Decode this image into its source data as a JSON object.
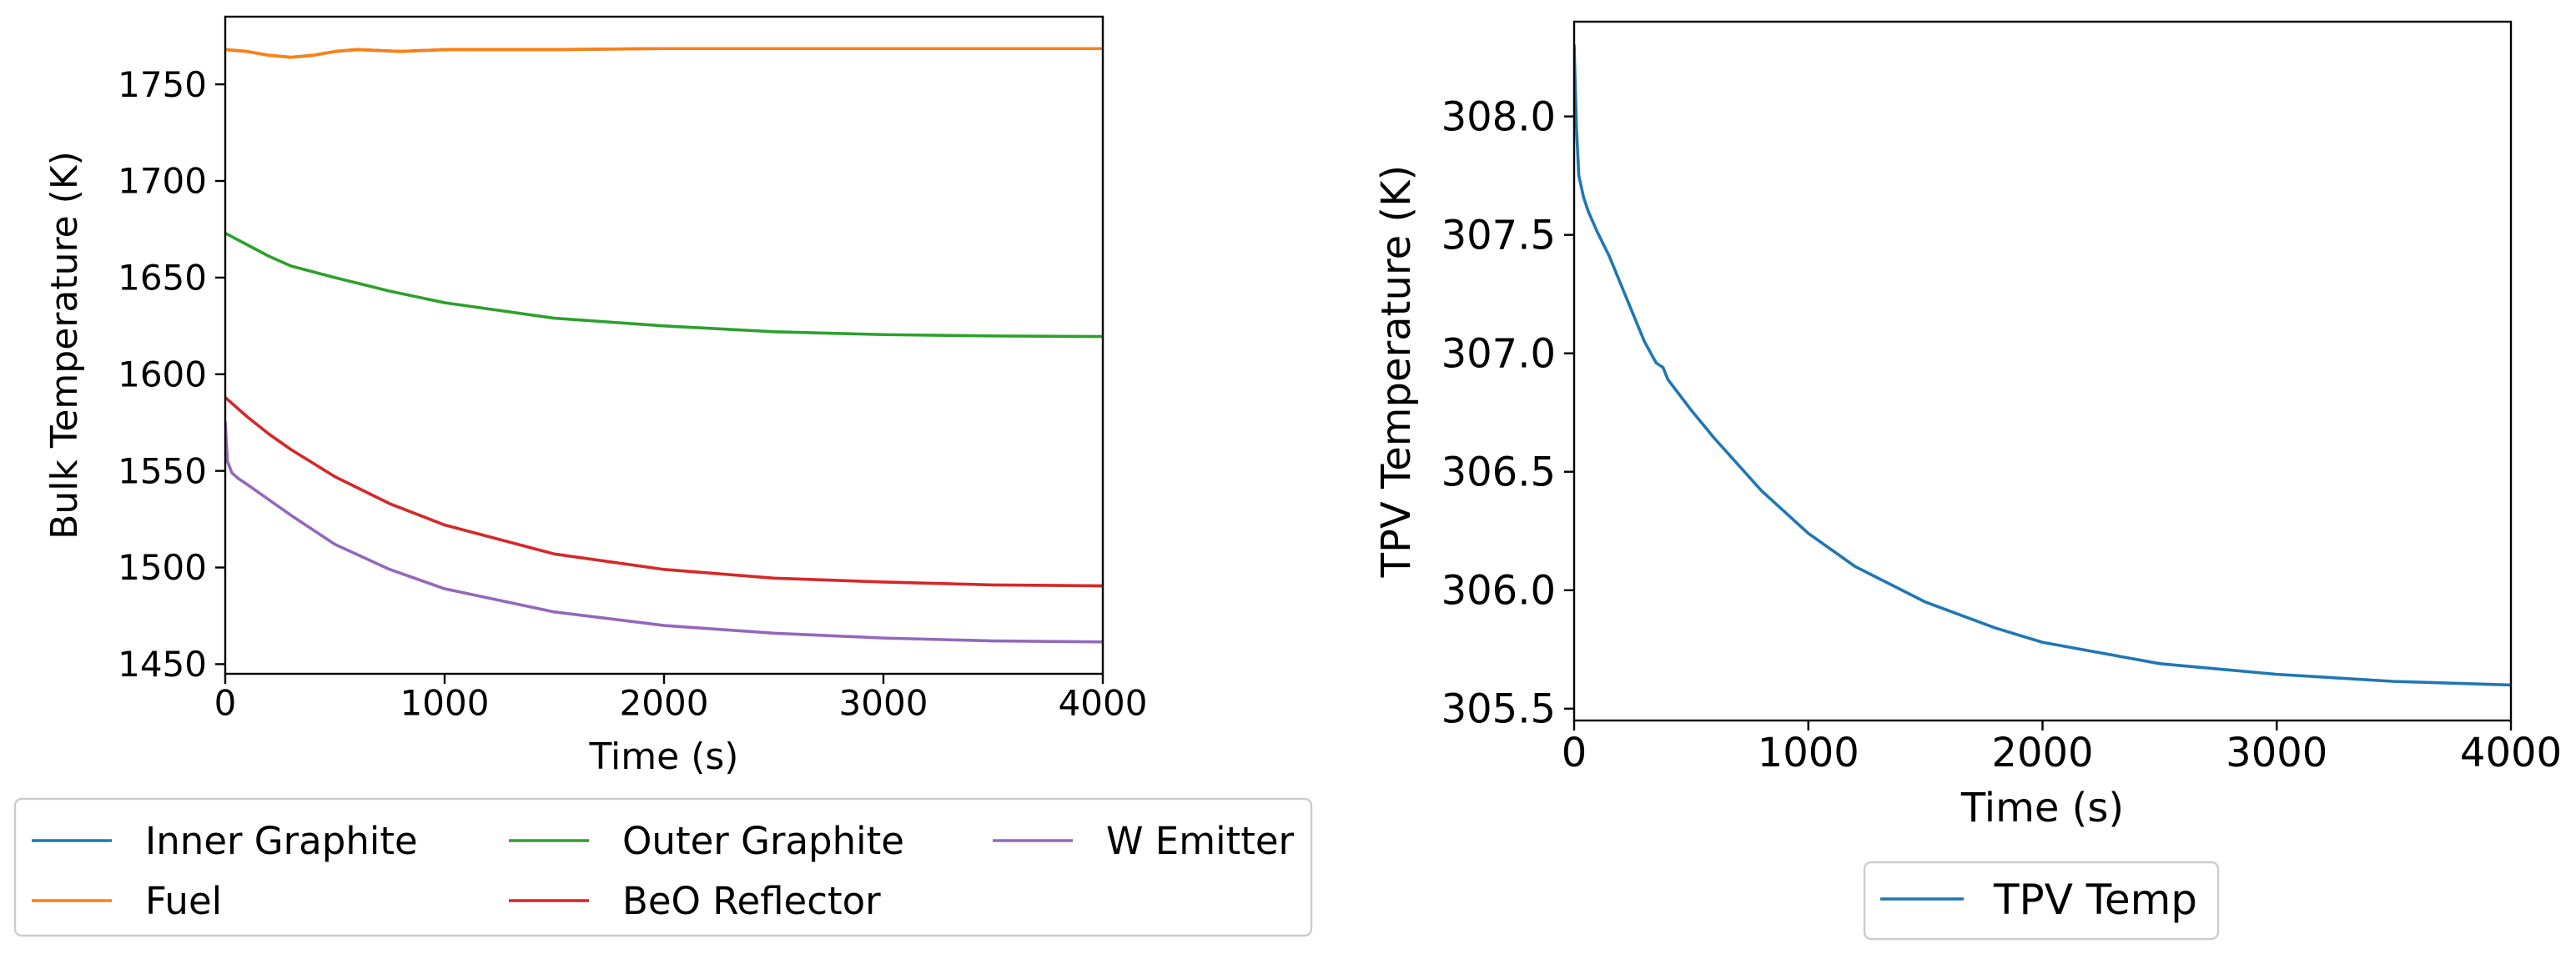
{
  "chart_data": [
    {
      "type": "line",
      "title": "",
      "xlabel": "Time (s)",
      "ylabel": "Bulk Temperature (K)",
      "xlim": [
        0,
        4000
      ],
      "ylim": [
        1445,
        1785
      ],
      "xticks": [
        0,
        1000,
        2000,
        3000,
        4000
      ],
      "yticks": [
        1450,
        1500,
        1550,
        1600,
        1650,
        1700,
        1750
      ],
      "grid": false,
      "legend_position": "below",
      "series": [
        {
          "name": "Inner Graphite",
          "color": "#1f77b4",
          "x": [
            0,
            100,
            200,
            300,
            400,
            500,
            600,
            800,
            1000,
            1500,
            2000,
            3000,
            4000
          ],
          "y": [
            1768,
            1767,
            1765,
            1764,
            1765,
            1767,
            1768,
            1767,
            1768,
            1768,
            1768.5,
            1768.5,
            1768.5
          ]
        },
        {
          "name": "Fuel",
          "color": "#ff7f0e",
          "x": [
            0,
            100,
            200,
            300,
            400,
            500,
            600,
            800,
            1000,
            1500,
            2000,
            3000,
            4000
          ],
          "y": [
            1768,
            1767,
            1765,
            1764,
            1765,
            1767,
            1768,
            1767,
            1768,
            1768,
            1768.5,
            1768.5,
            1768.5
          ]
        },
        {
          "name": "Outer Graphite",
          "color": "#2ca02c",
          "x": [
            0,
            100,
            200,
            300,
            500,
            750,
            1000,
            1500,
            2000,
            2500,
            3000,
            3500,
            4000
          ],
          "y": [
            1673,
            1667,
            1661,
            1656,
            1650,
            1643,
            1637,
            1629,
            1625,
            1622,
            1620.5,
            1619.8,
            1619.5
          ]
        },
        {
          "name": "BeO Reflector",
          "color": "#d62728",
          "x": [
            0,
            100,
            200,
            300,
            500,
            750,
            1000,
            1500,
            2000,
            2500,
            3000,
            3500,
            4000
          ],
          "y": [
            1588,
            1578,
            1569,
            1561,
            1547,
            1533,
            1522,
            1507,
            1499,
            1494.5,
            1492.5,
            1491,
            1490.5
          ]
        },
        {
          "name": "W Emitter",
          "color": "#9467bd",
          "x": [
            0,
            10,
            30,
            60,
            100,
            200,
            300,
            500,
            750,
            1000,
            1500,
            2000,
            2500,
            3000,
            3500,
            4000
          ],
          "y": [
            1575,
            1555,
            1549,
            1546,
            1543,
            1535,
            1527,
            1512,
            1499,
            1489,
            1477,
            1470,
            1466,
            1463.5,
            1462,
            1461.5
          ]
        }
      ],
      "legend": [
        "Inner Graphite",
        "Outer Graphite",
        "W Emitter",
        "Fuel",
        "BeO Reflector"
      ]
    },
    {
      "type": "line",
      "title": "",
      "xlabel": "Time (s)",
      "ylabel": "TPV Temperature (K)",
      "xlim": [
        0,
        4000
      ],
      "ylim": [
        305.45,
        308.4
      ],
      "xticks": [
        0,
        1000,
        2000,
        3000,
        4000
      ],
      "yticks": [
        305.5,
        306.0,
        306.5,
        307.0,
        307.5,
        308.0
      ],
      "grid": false,
      "legend_position": "below",
      "series": [
        {
          "name": "TPV Temp",
          "color": "#1f77b4",
          "x": [
            0,
            10,
            20,
            40,
            60,
            100,
            150,
            200,
            250,
            300,
            350,
            380,
            400,
            500,
            600,
            800,
            1000,
            1200,
            1500,
            1800,
            2000,
            2500,
            3000,
            3500,
            4000
          ],
          "y": [
            308.3,
            307.95,
            307.75,
            307.66,
            307.6,
            307.51,
            307.41,
            307.29,
            307.17,
            307.05,
            306.96,
            306.94,
            306.89,
            306.76,
            306.64,
            306.42,
            306.24,
            306.1,
            305.95,
            305.84,
            305.78,
            305.69,
            305.645,
            305.615,
            305.6
          ]
        }
      ],
      "legend": [
        "TPV Temp"
      ]
    }
  ]
}
